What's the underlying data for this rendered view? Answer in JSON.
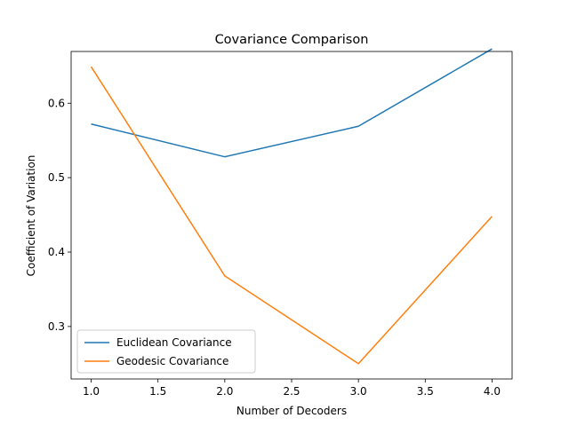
{
  "chart_data": {
    "type": "line",
    "title": "Covariance Comparison",
    "xlabel": "Number of Decoders",
    "ylabel": "Coefficient of Variation",
    "x": [
      1.0,
      2.0,
      3.0,
      4.0
    ],
    "xlim": [
      0.85,
      4.15
    ],
    "ylim": [
      0.2295,
      0.6695
    ],
    "xticks": [
      1.0,
      1.5,
      2.0,
      2.5,
      3.0,
      3.5,
      4.0
    ],
    "xtick_labels": [
      "1.0",
      "1.5",
      "2.0",
      "2.5",
      "3.0",
      "3.5",
      "4.0"
    ],
    "yticks": [
      0.3,
      0.4,
      0.5,
      0.6
    ],
    "ytick_labels": [
      "0.3",
      "0.4",
      "0.5",
      "0.6"
    ],
    "series": [
      {
        "name": "Euclidean Covariance",
        "color": "#1f77b4",
        "values": [
          0.572,
          0.528,
          0.569,
          0.673
        ]
      },
      {
        "name": "Geodesic Covariance",
        "color": "#ff7f0e",
        "values": [
          0.649,
          0.368,
          0.25,
          0.448
        ]
      }
    ],
    "legend_position": "lower-left",
    "grid": false
  }
}
